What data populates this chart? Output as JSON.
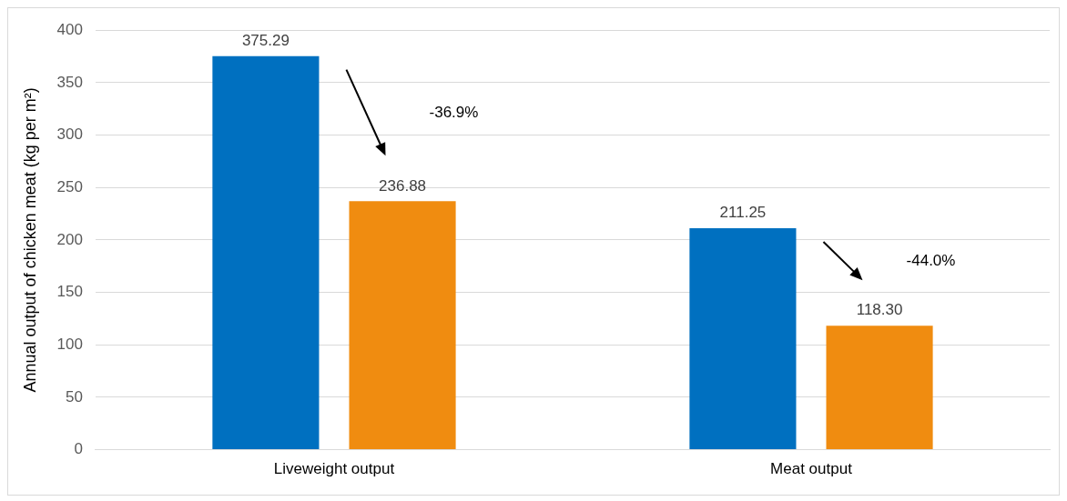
{
  "chart_data": {
    "type": "bar",
    "ylabel": "Annual output of chicken meat (kg per m²)",
    "categories": [
      "Liveweight output",
      "Meat output"
    ],
    "series": [
      {
        "color": "#0070c0",
        "values": [
          375.29,
          211.25
        ],
        "value_labels": [
          "375.29",
          "211.25"
        ]
      },
      {
        "color": "#f08c10",
        "values": [
          236.88,
          118.3
        ],
        "value_labels": [
          "236.88",
          "118.30"
        ]
      }
    ],
    "ylim": [
      0,
      400
    ],
    "yticks": [
      0,
      50,
      100,
      150,
      200,
      250,
      300,
      350,
      400
    ],
    "grid": "y",
    "legend": false,
    "annotations": [
      "-36.9%",
      "-44.0%"
    ]
  }
}
